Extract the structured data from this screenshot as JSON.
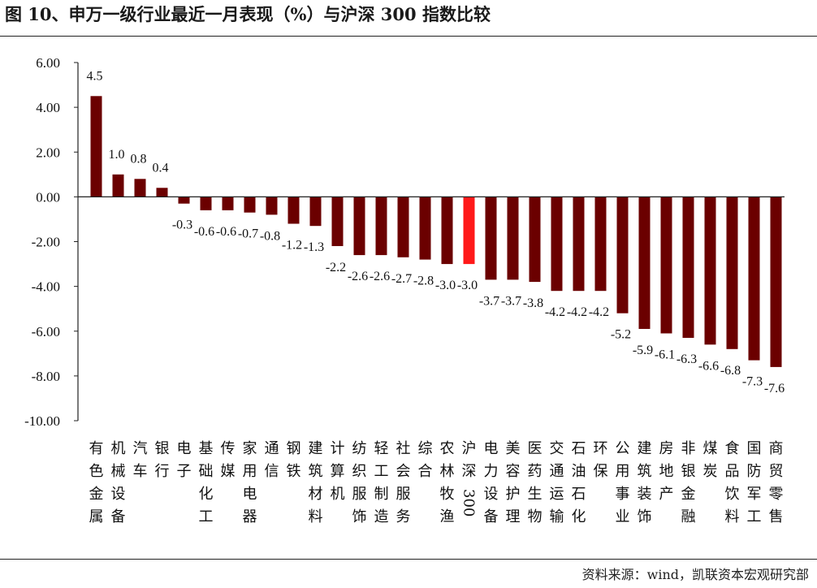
{
  "header": {
    "title": "图 10、申万一级行业最近一月表现（%）与沪深 300 指数比较"
  },
  "footer": {
    "source": "资料来源：wind，凯联资本宏观研究部"
  },
  "colors": {
    "bar": "#6b0000",
    "highlight_bar": "#ff1a1a",
    "axis": "#222222"
  },
  "chart_data": {
    "type": "bar",
    "categories": [
      "有色金属",
      "机械设备",
      "汽车",
      "银行",
      "电子",
      "基础化工",
      "传媒",
      "家用电器",
      "通信",
      "钢铁",
      "建筑材料",
      "计算机",
      "纺织服饰",
      "轻工制造",
      "社会服务",
      "综合",
      "农林牧渔",
      "沪深300",
      "电力设备",
      "美容护理",
      "医药生物",
      "交通运输",
      "石油石化",
      "环保",
      "公用事业",
      "建筑装饰",
      "房地产",
      "非银金融",
      "煤炭",
      "食品饮料",
      "国防军工",
      "商贸零售"
    ],
    "category_display": [
      "有色金属",
      "机械设备",
      "汽车",
      "银行",
      "电子",
      "基础化工",
      "传媒",
      "家用电器",
      "通信",
      "钢铁",
      "建筑材料",
      "计算机",
      "纺织服饰",
      "轻工制造",
      "社会服务",
      "综合",
      "农林牧渔",
      "沪深300",
      "电力设备",
      "美容护理",
      "医药生物",
      "交通运输",
      "石油石化",
      "环保",
      "公用事业",
      "建筑装饰",
      "房地产",
      "非银金融",
      "煤炭",
      "食品饮料",
      "国防军工",
      "商贸零售"
    ],
    "values": [
      4.5,
      1.0,
      0.8,
      0.4,
      -0.3,
      -0.6,
      -0.6,
      -0.7,
      -0.8,
      -1.2,
      -1.3,
      -2.2,
      -2.6,
      -2.6,
      -2.7,
      -2.8,
      -3.0,
      -3.0,
      -3.7,
      -3.7,
      -3.8,
      -4.2,
      -4.2,
      -4.2,
      -5.2,
      -5.9,
      -6.1,
      -6.3,
      -6.6,
      -6.8,
      -7.3,
      -7.6
    ],
    "data_labels": [
      "4.5",
      "1.0",
      "0.8",
      "0.4",
      "-0.3",
      "-0.6",
      "-0.6",
      "-0.7",
      "-0.8",
      "-1.2",
      "-1.3",
      "-2.2",
      "-2.6",
      "-2.6",
      "-2.7",
      "-2.8",
      "-3.0",
      "-3.0",
      "-3.7",
      "-3.7",
      "-3.8",
      "-4.2",
      "-4.2",
      "-4.2",
      "-5.2",
      "-5.9",
      "-6.1",
      "-6.3",
      "-6.6",
      "-6.8",
      "-7.3",
      "-7.6"
    ],
    "highlight_index": 17,
    "y_ticks": [
      "6.00",
      "4.00",
      "2.00",
      "0.00",
      "-2.00",
      "-4.00",
      "-6.00",
      "-8.00",
      "-10.00"
    ],
    "ylim": [
      -10,
      6
    ],
    "grid": false,
    "legend": "none",
    "title": "",
    "xlabel": "",
    "ylabel": ""
  }
}
